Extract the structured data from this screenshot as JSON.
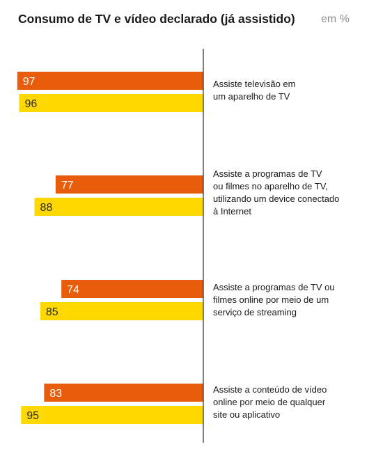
{
  "chart_data": {
    "type": "bar",
    "orientation": "horizontal",
    "title": "Consumo de TV e vídeo declarado (já assistido)",
    "unit": "em %",
    "categories": [
      [
        "Assiste televisão em",
        "um aparelho de TV"
      ],
      [
        "Assiste a programas de TV",
        "ou filmes no aparelho de TV,",
        "utilizando um device conectado",
        "à Internet"
      ],
      [
        "Assiste a programas de TV ou",
        "filmes online por meio de um",
        "serviço de streaming"
      ],
      [
        "Assiste a conteúdo de vídeo",
        "online por meio de qualquer",
        "site ou aplicativo"
      ]
    ],
    "series": [
      {
        "color": "#e85d0c",
        "values": [
          97,
          77,
          74,
          83
        ]
      },
      {
        "color": "#ffd800",
        "values": [
          96,
          88,
          85,
          95
        ]
      }
    ],
    "xlim": [
      0,
      100
    ],
    "grid": false,
    "legend": "none"
  }
}
